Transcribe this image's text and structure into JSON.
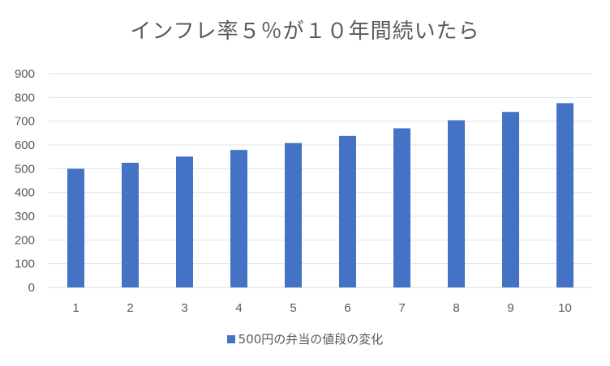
{
  "chart_data": {
    "type": "bar",
    "title": "インフレ率５％が１０年間続いたら",
    "categories": [
      "1",
      "2",
      "3",
      "4",
      "5",
      "6",
      "7",
      "8",
      "9",
      "10"
    ],
    "series": [
      {
        "name": "500円の弁当の値段の変化",
        "values": [
          500,
          525,
          551,
          579,
          608,
          638,
          670,
          704,
          739,
          776
        ],
        "color": "#4472C4"
      }
    ],
    "ylim": [
      0,
      900
    ],
    "yticks": [
      0,
      100,
      200,
      300,
      400,
      500,
      600,
      700,
      800,
      900
    ],
    "grid": true,
    "legend": "bottom"
  }
}
